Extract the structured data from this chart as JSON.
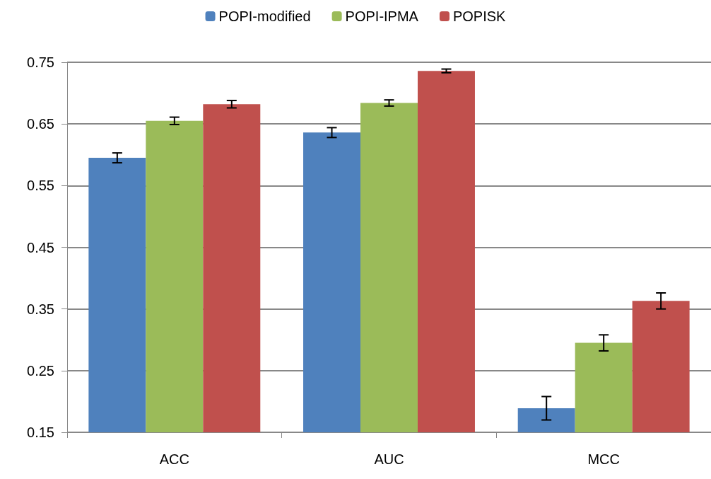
{
  "chart_data": {
    "type": "bar",
    "categories": [
      "ACC",
      "AUC",
      "MCC"
    ],
    "series": [
      {
        "name": "POPI-modified",
        "color": "#4f81bd",
        "values": [
          0.595,
          0.636,
          0.189
        ],
        "errors": [
          0.008,
          0.008,
          0.019
        ]
      },
      {
        "name": "POPI-IPMA",
        "color": "#9bbb59",
        "values": [
          0.655,
          0.684,
          0.295
        ],
        "errors": [
          0.006,
          0.005,
          0.013
        ]
      },
      {
        "name": "POPISK",
        "color": "#c0504d",
        "values": [
          0.682,
          0.736,
          0.363
        ],
        "errors": [
          0.006,
          0.003,
          0.013
        ]
      }
    ],
    "ylim": [
      0.15,
      0.75
    ],
    "yticks": [
      0.15,
      0.25,
      0.35,
      0.45,
      0.55,
      0.65,
      0.75
    ],
    "grid": "y",
    "legend": "top"
  }
}
